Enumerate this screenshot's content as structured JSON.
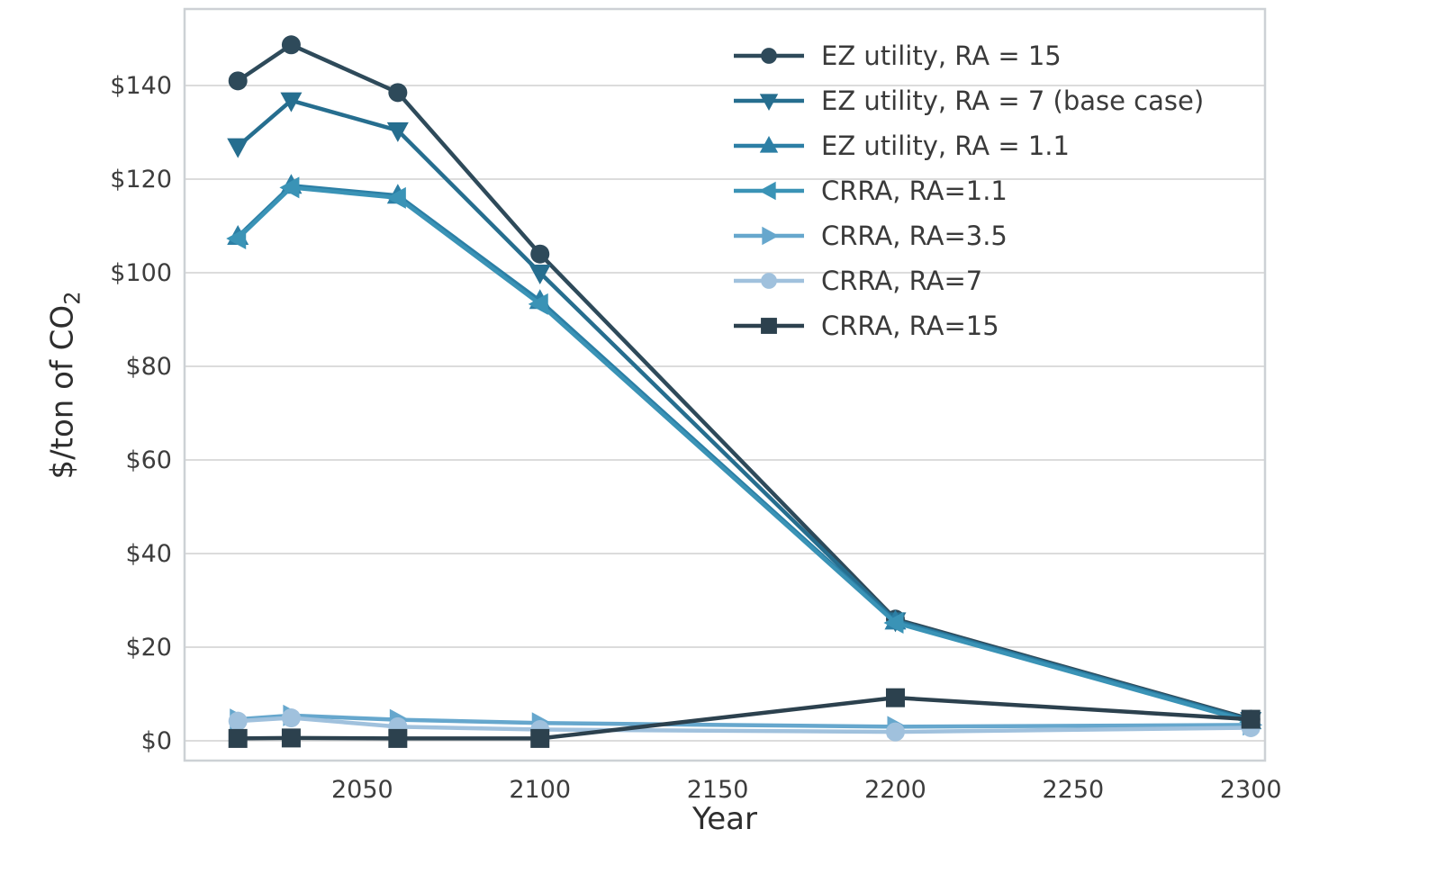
{
  "figure": {
    "xlabel": "Year",
    "ylabel_prefix": "$/ton of CO",
    "ylabel_subscript": "2"
  },
  "chart_data": {
    "type": "line",
    "title": "",
    "xlabel": "Year",
    "ylabel": "$/ton of CO2",
    "x": [
      2015,
      2030,
      2060,
      2100,
      2200,
      2300
    ],
    "xlim": [
      2000,
      2304
    ],
    "ylim": [
      -4.23,
      156.35
    ],
    "x_ticks": [
      2050,
      2100,
      2150,
      2200,
      2250,
      2300
    ],
    "x_tick_labels": [
      "2050",
      "2100",
      "2150",
      "2200",
      "2250",
      "2300"
    ],
    "y_ticks": [
      0,
      20,
      40,
      60,
      80,
      100,
      120,
      140
    ],
    "y_tick_labels": [
      "$0",
      "$20",
      "$40",
      "$60",
      "$80",
      "$100",
      "$120",
      "$140"
    ],
    "grid": "horizontal",
    "grid_color": "#dcdcdc",
    "frame_color": "#cdd1d5",
    "legend_position": "upper-right-frameless",
    "series": [
      {
        "name": "EZ utility, RA = 15",
        "marker": "circle",
        "color": "#2e4a5a",
        "values": [
          141.0,
          148.7,
          138.5,
          104.0,
          26.0,
          4.6
        ]
      },
      {
        "name": "EZ utility, RA = 7 (base case)",
        "marker": "triangle-down",
        "color": "#266e8f",
        "values": [
          127.0,
          136.8,
          130.4,
          100.0,
          25.7,
          4.4
        ]
      },
      {
        "name": "EZ utility, RA = 1.1",
        "marker": "triangle-up",
        "color": "#2c7fa5",
        "values": [
          107.7,
          118.6,
          116.5,
          94.0,
          25.5,
          4.2
        ]
      },
      {
        "name": "CRRA, RA=1.1",
        "marker": "triangle-left",
        "color": "#3a93b6",
        "values": [
          107.3,
          118.2,
          116.0,
          93.3,
          25.2,
          4.0
        ]
      },
      {
        "name": "CRRA, RA=3.5",
        "marker": "triangle-right",
        "color": "#66a7cd",
        "values": [
          4.6,
          5.4,
          4.5,
          3.8,
          3.0,
          3.4
        ]
      },
      {
        "name": "CRRA, RA=7",
        "marker": "circle",
        "color": "#a0c1dd",
        "values": [
          4.2,
          4.9,
          3.0,
          2.4,
          1.9,
          2.8
        ]
      },
      {
        "name": "CRRA, RA=15",
        "marker": "square",
        "color": "#2c414e",
        "values": [
          0.5,
          0.6,
          0.5,
          0.5,
          9.2,
          4.6
        ]
      }
    ]
  }
}
